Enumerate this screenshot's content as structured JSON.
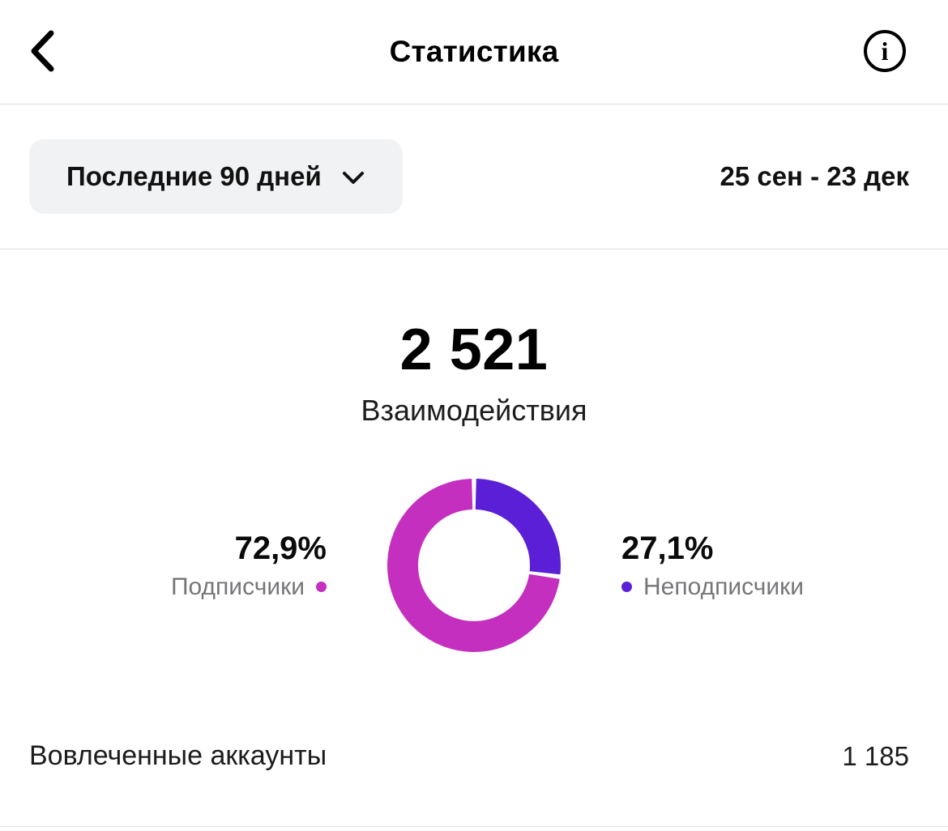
{
  "header": {
    "title": "Статистика"
  },
  "filter": {
    "period_label": "Последние 90 дней",
    "date_range": "25 сен - 23 дек"
  },
  "summary": {
    "total": "2 521",
    "label": "Взаимодействия"
  },
  "chart_data": {
    "type": "pie",
    "donut": true,
    "title": "Взаимодействия",
    "total": 2521,
    "start": "top",
    "direction": "clockwise",
    "legend_position": "sides",
    "slices": [
      {
        "label": "Подписчики",
        "pct": 72.9,
        "display": "72,9%",
        "color": "#C42FBF"
      },
      {
        "label": "Неподписчики",
        "pct": 27.1,
        "display": "27,1%",
        "color": "#5A1FD6"
      }
    ]
  },
  "footer": {
    "engaged_accounts_label": "Вовлеченные аккаунты",
    "engaged_accounts_value": "1 185"
  },
  "colors": {
    "divider": "#dcdcde",
    "muted_text": "#767679"
  }
}
